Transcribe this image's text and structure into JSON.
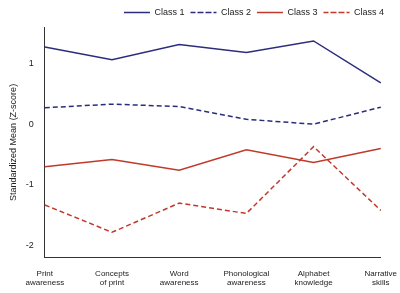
{
  "chart_data": {
    "type": "line",
    "y_label": "Standardized Mean (Z-score)",
    "categories": [
      "Print awareness",
      "Concepts of print",
      "Word awareness",
      "Phonological awareness",
      "Alphabet knowledge",
      "Narrative skills"
    ],
    "series": [
      {
        "name": "Class 1",
        "color": "#2b2d7c",
        "line_style": "solid",
        "values": [
          1.27,
          1.06,
          1.31,
          1.18,
          1.37,
          0.68
        ]
      },
      {
        "name": "Class 2",
        "color": "#2b2d7c",
        "line_style": "dashed",
        "values": [
          0.27,
          0.33,
          0.29,
          0.08,
          0.0,
          0.28
        ]
      },
      {
        "name": "Class 3",
        "color": "#c0392b",
        "line_style": "solid",
        "values": [
          -0.7,
          -0.58,
          -0.76,
          -0.42,
          -0.63,
          -0.4
        ]
      },
      {
        "name": "Class 4",
        "color": "#c0392b",
        "line_style": "dashed",
        "values": [
          -1.33,
          -1.78,
          -1.3,
          -1.47,
          -0.37,
          -1.42
        ]
      }
    ],
    "ylim": [
      -2.2,
      1.6
    ],
    "yticks": [
      -2,
      -1,
      0,
      1
    ],
    "grid": false,
    "legend": "top-right"
  }
}
